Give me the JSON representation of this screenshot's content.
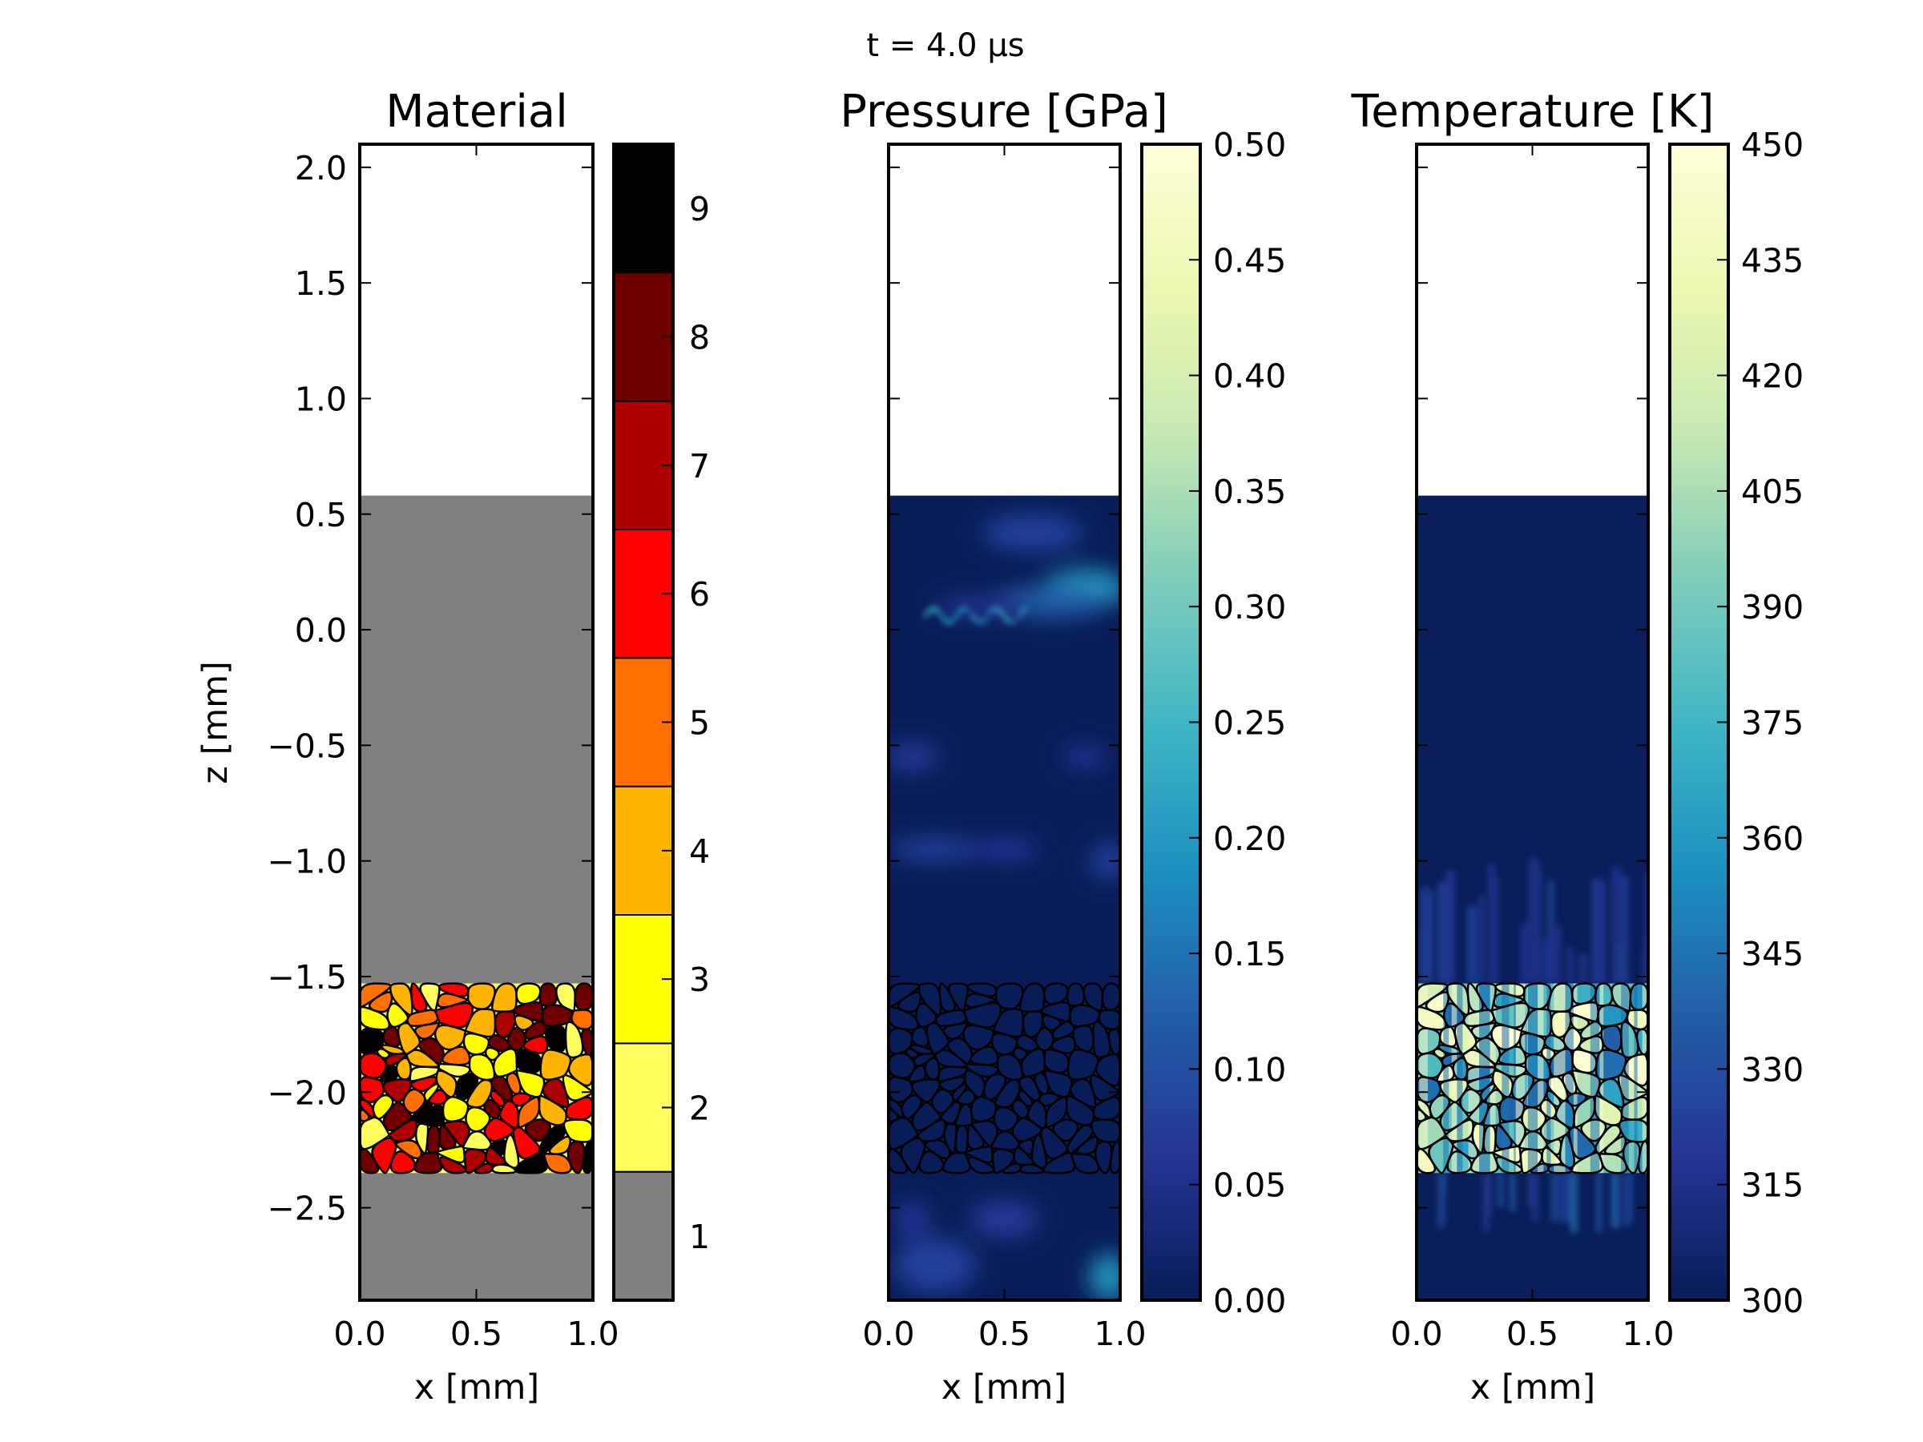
{
  "figure": {
    "suptitle": "t =  4.0 μs"
  },
  "chart_data": [
    {
      "type": "heatmap",
      "id": "material",
      "title": "Material",
      "xlabel": "x [mm]",
      "ylabel": "z [mm]",
      "xlim": [
        0.0,
        1.0
      ],
      "ylim": [
        -2.9,
        2.1
      ],
      "xticks": [
        "0.0",
        "0.5",
        "1.0"
      ],
      "xtick_values": [
        0.0,
        0.5,
        1.0
      ],
      "yticks": [
        "2.0",
        "1.5",
        "1.0",
        "0.5",
        "0.0",
        "−0.5",
        "−1.0",
        "−1.5",
        "−2.0",
        "−2.5"
      ],
      "ytick_values": [
        2.0,
        1.5,
        1.0,
        0.5,
        0.0,
        -0.5,
        -1.0,
        -1.5,
        -2.0,
        -2.5
      ],
      "regions": [
        {
          "name": "void",
          "z_top": 2.1,
          "z_bottom": 0.58,
          "value": null
        },
        {
          "name": "matrix-upper",
          "z_top": 0.58,
          "z_bottom": -1.53,
          "value": 1
        },
        {
          "name": "granular-layer",
          "z_top": -1.53,
          "z_bottom": -2.35,
          "value": "2-9 mixed grains"
        },
        {
          "name": "matrix-lower",
          "z_top": -2.35,
          "z_bottom": -2.9,
          "value": 1
        }
      ],
      "colorbar": {
        "type": "discrete",
        "ticks": [
          "1",
          "2",
          "3",
          "4",
          "5",
          "6",
          "7",
          "8",
          "9"
        ],
        "values": [
          1,
          2,
          3,
          4,
          5,
          6,
          7,
          8,
          9
        ],
        "colors": [
          "#808080",
          "#ffff60",
          "#ffff00",
          "#ffb400",
          "#ff7000",
          "#ff0000",
          "#aa0000",
          "#700000",
          "#000000"
        ],
        "range": [
          0.5,
          9.5
        ]
      }
    },
    {
      "type": "heatmap",
      "id": "pressure",
      "title": "Pressure [GPa]",
      "xlabel": "x [mm]",
      "xlim": [
        0.0,
        1.0
      ],
      "ylim": [
        -2.9,
        2.1
      ],
      "xticks": [
        "0.0",
        "0.5",
        "1.0"
      ],
      "xtick_values": [
        0.0,
        0.5,
        1.0
      ],
      "ytick_values": [
        2.0,
        1.5,
        1.0,
        0.5,
        0.0,
        -0.5,
        -1.0,
        -1.5,
        -2.0,
        -2.5
      ],
      "background_value": 0.0,
      "features": [
        {
          "desc": "wavefront band",
          "x": [
            0.2,
            1.0
          ],
          "z": [
            0.0,
            0.55
          ],
          "peak_value": 0.25
        },
        {
          "desc": "weak front",
          "x": [
            0.0,
            1.0
          ],
          "z": [
            -1.0,
            -0.5
          ],
          "peak_value": 0.08
        },
        {
          "desc": "reflected wave below grains",
          "x": [
            0.0,
            1.0
          ],
          "z": [
            -2.9,
            -2.35
          ],
          "peak_value": 0.2
        }
      ],
      "granular_layer_z": [
        -2.35,
        -1.53
      ],
      "colorbar": {
        "type": "continuous",
        "colormap": "YlGnBu",
        "range": [
          0.0,
          0.5
        ],
        "ticks": [
          "0.00",
          "0.05",
          "0.10",
          "0.15",
          "0.20",
          "0.25",
          "0.30",
          "0.35",
          "0.40",
          "0.45",
          "0.50"
        ],
        "values": [
          0.0,
          0.05,
          0.1,
          0.15,
          0.2,
          0.25,
          0.3,
          0.35,
          0.4,
          0.45,
          0.5
        ]
      }
    },
    {
      "type": "heatmap",
      "id": "temperature",
      "title": "Temperature [K]",
      "xlabel": "x [mm]",
      "xlim": [
        0.0,
        1.0
      ],
      "ylim": [
        -2.9,
        2.1
      ],
      "xticks": [
        "0.0",
        "0.5",
        "1.0"
      ],
      "xtick_values": [
        0.0,
        0.5,
        1.0
      ],
      "ytick_values": [
        2.0,
        1.5,
        1.0,
        0.5,
        0.0,
        -0.5,
        -1.0,
        -1.5,
        -2.0,
        -2.5
      ],
      "background_value": 300,
      "granular_layer_z": [
        -2.35,
        -1.53
      ],
      "granular_layer_value_range": [
        330,
        450
      ],
      "colorbar": {
        "type": "continuous",
        "colormap": "YlGnBu",
        "range": [
          300,
          450
        ],
        "ticks": [
          "300",
          "315",
          "330",
          "345",
          "360",
          "375",
          "390",
          "405",
          "420",
          "435",
          "450"
        ],
        "values": [
          300,
          315,
          330,
          345,
          360,
          375,
          390,
          405,
          420,
          435,
          450
        ]
      }
    }
  ],
  "colormaps": {
    "YlGnBu": [
      "#081d58",
      "#253494",
      "#225ea8",
      "#1d91c0",
      "#41b6c4",
      "#7fcdbb",
      "#c7e9b4",
      "#edf8b1",
      "#ffffd9"
    ]
  }
}
